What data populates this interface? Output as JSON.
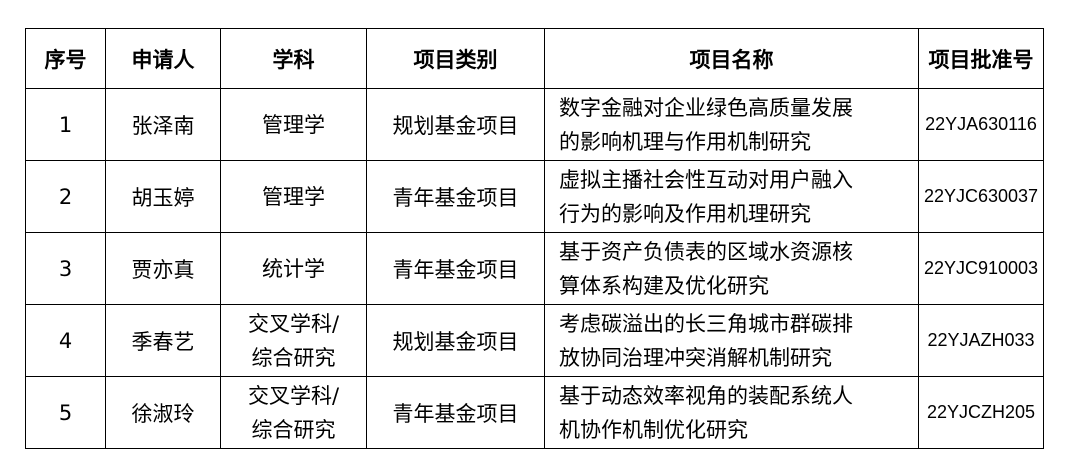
{
  "headers": [
    "序号",
    "申请人",
    "学科",
    "项目类别",
    "项目名称",
    "项目批准号"
  ],
  "rows": [
    {
      "no": "1",
      "applicant": "张泽南",
      "subject": [
        "管理学"
      ],
      "category": "规划基金项目",
      "title": [
        "数字金融对企业绿色高质量发展",
        "的影响机理与作用机制研究"
      ],
      "code": "22YJA630116"
    },
    {
      "no": "2",
      "applicant": "胡玉婷",
      "subject": [
        "管理学"
      ],
      "category": "青年基金项目",
      "title": [
        "虚拟主播社会性互动对用户融入",
        "行为的影响及作用机理研究"
      ],
      "code": "22YJC630037"
    },
    {
      "no": "3",
      "applicant": "贾亦真",
      "subject": [
        "统计学"
      ],
      "category": "青年基金项目",
      "title": [
        "基于资产负债表的区域水资源核",
        "算体系构建及优化研究"
      ],
      "code": "22YJC910003"
    },
    {
      "no": "4",
      "applicant": "季春艺",
      "subject": [
        "交叉学科/",
        "综合研究"
      ],
      "category": "规划基金项目",
      "title": [
        "考虑碳溢出的长三角城市群碳排",
        "放协同治理冲突消解机制研究"
      ],
      "code": "22YJAZH033"
    },
    {
      "no": "5",
      "applicant": "徐淑玲",
      "subject": [
        "交叉学科/",
        "综合研究"
      ],
      "category": "青年基金项目",
      "title": [
        "基于动态效率视角的装配系统人",
        "机协作机制优化研究"
      ],
      "code": "22YJCZH205"
    }
  ]
}
